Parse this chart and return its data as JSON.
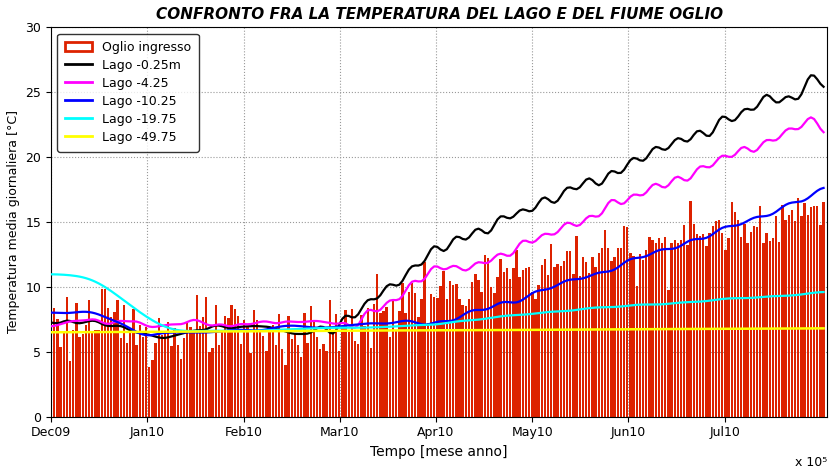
{
  "title": "CONFRONTO FRA LA TEMPERATURA DEL LAGO E DEL FIUME OGLIO",
  "xlabel": "Tempo [mese anno]",
  "ylabel": "Temperatura media giornaliera [°C]",
  "xlim": [
    0,
    500000
  ],
  "ylim": [
    0,
    30
  ],
  "yticks": [
    0,
    5,
    10,
    15,
    20,
    25,
    30
  ],
  "xtick_positions": [
    0,
    62000,
    124000,
    186000,
    248000,
    310000,
    372000,
    434000
  ],
  "xtick_labels": [
    "Dec09",
    "Jan10",
    "Feb10",
    "Mar10",
    "Apr10",
    "May10",
    "Jun10",
    "Jul10"
  ],
  "x10_label": "x 10⁵",
  "legend_entries": [
    "Oglio ingresso",
    "Lago -0.25m",
    "Lago -4.25",
    "Lago -10.25",
    "Lago -19.75",
    "Lago -49.75"
  ],
  "bar_color": "#DD2200",
  "bar_edge_color": "#DD2200",
  "bar_legend_facecolor": "white",
  "bar_legend_edgecolor": "#DD2200",
  "line_colors": [
    "black",
    "magenta",
    "blue",
    "cyan",
    "yellow"
  ],
  "background_color": "#ffffff",
  "grid_color": "#999999",
  "title_style": "italic",
  "title_weight": "bold",
  "n_days": 245,
  "scale": 2040
}
